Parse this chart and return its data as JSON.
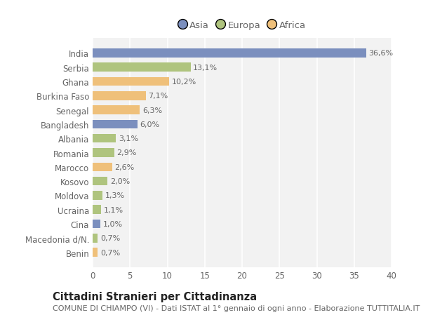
{
  "countries": [
    "India",
    "Serbia",
    "Ghana",
    "Burkina Faso",
    "Senegal",
    "Bangladesh",
    "Albania",
    "Romania",
    "Marocco",
    "Kosovo",
    "Moldova",
    "Ucraina",
    "Cina",
    "Macedonia d/N.",
    "Benin"
  ],
  "values": [
    36.6,
    13.1,
    10.2,
    7.1,
    6.3,
    6.0,
    3.1,
    2.9,
    2.6,
    2.0,
    1.3,
    1.1,
    1.0,
    0.7,
    0.7
  ],
  "labels": [
    "36,6%",
    "13,1%",
    "10,2%",
    "7,1%",
    "6,3%",
    "6,0%",
    "3,1%",
    "2,9%",
    "2,6%",
    "2,0%",
    "1,3%",
    "1,1%",
    "1,0%",
    "0,7%",
    "0,7%"
  ],
  "continents": [
    "Asia",
    "Europa",
    "Africa",
    "Africa",
    "Africa",
    "Asia",
    "Europa",
    "Europa",
    "Africa",
    "Europa",
    "Europa",
    "Europa",
    "Asia",
    "Europa",
    "Africa"
  ],
  "continent_colors": {
    "Asia": "#7b8fbe",
    "Europa": "#afc47e",
    "Africa": "#efc07a"
  },
  "background_color": "#ffffff",
  "plot_bg_color": "#f2f2f2",
  "title": "Cittadini Stranieri per Cittadinanza",
  "subtitle": "COMUNE DI CHIAMPO (VI) - Dati ISTAT al 1° gennaio di ogni anno - Elaborazione TUTTITALIA.IT",
  "xlim": [
    0,
    40
  ],
  "xticks": [
    0,
    5,
    10,
    15,
    20,
    25,
    30,
    35,
    40
  ],
  "grid_color": "#ffffff",
  "bar_height": 0.62,
  "title_fontsize": 10.5,
  "subtitle_fontsize": 8,
  "tick_fontsize": 8.5,
  "label_fontsize": 8,
  "legend_fontsize": 9.5
}
